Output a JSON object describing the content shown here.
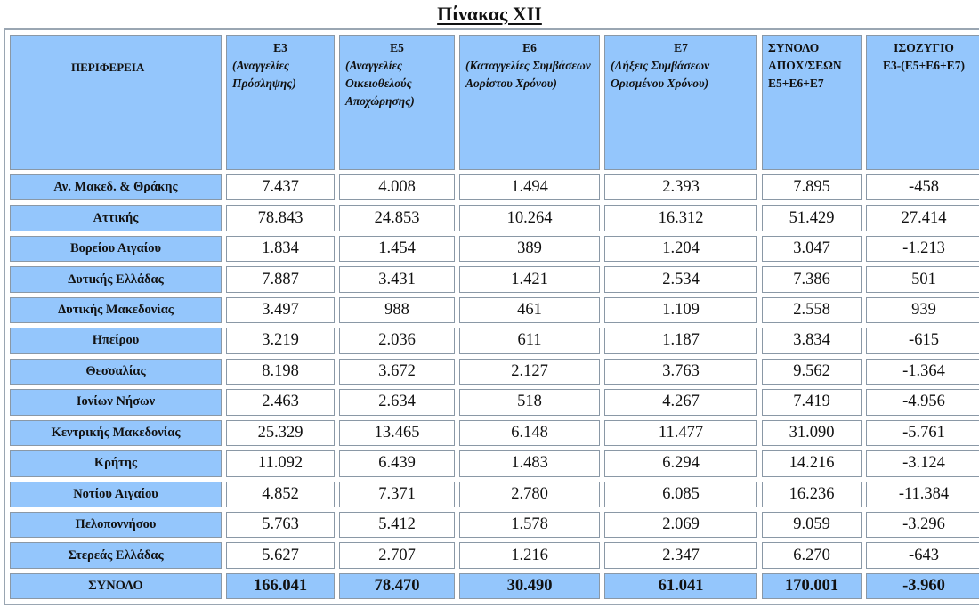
{
  "title": "Πίνακας XII",
  "headers": [
    {
      "code": "ΠΕΡΙΦΕΡΕΙΑ",
      "desc": ""
    },
    {
      "code": "Ε3",
      "desc": "(Αναγγελίες Πρόσληψης)"
    },
    {
      "code": "Ε5",
      "desc": "(Αναγγελίες Οικειοθελούς Αποχώρησης)"
    },
    {
      "code": "Ε6",
      "desc": "(Καταγγελίες Συμβάσεων Αορίστου Χρόνου)"
    },
    {
      "code": "Ε7",
      "desc": "(Λήξεις Συμβάσεων Ορισμένου Χρόνου)"
    },
    {
      "code": "ΣΥΝΟΛΟ ΑΠΟΧ/ΣΕΩΝ",
      "desc": "Ε5+Ε6+Ε7"
    },
    {
      "code": "ΙΣΟΖΥΓΙΟ",
      "desc": "Ε3-(Ε5+Ε6+Ε7)"
    }
  ],
  "rows": [
    {
      "region": "Αν. Μακεδ. & Θράκης",
      "values": [
        "7.437",
        "4.008",
        "1.494",
        "2.393",
        "7.895",
        "-458"
      ]
    },
    {
      "region": "Αττικής",
      "values": [
        "78.843",
        "24.853",
        "10.264",
        "16.312",
        "51.429",
        "27.414"
      ]
    },
    {
      "region": "Βορείου Αιγαίου",
      "values": [
        "1.834",
        "1.454",
        "389",
        "1.204",
        "3.047",
        "-1.213"
      ]
    },
    {
      "region": "Δυτικής Ελλάδας",
      "values": [
        "7.887",
        "3.431",
        "1.421",
        "2.534",
        "7.386",
        "501"
      ]
    },
    {
      "region": "Δυτικής Μακεδονίας",
      "values": [
        "3.497",
        "988",
        "461",
        "1.109",
        "2.558",
        "939"
      ]
    },
    {
      "region": "Ηπείρου",
      "values": [
        "3.219",
        "2.036",
        "611",
        "1.187",
        "3.834",
        "-615"
      ]
    },
    {
      "region": "Θεσσαλίας",
      "values": [
        "8.198",
        "3.672",
        "2.127",
        "3.763",
        "9.562",
        "-1.364"
      ]
    },
    {
      "region": "Ιονίων Νήσων",
      "values": [
        "2.463",
        "2.634",
        "518",
        "4.267",
        "7.419",
        "-4.956"
      ]
    },
    {
      "region": "Κεντρικής Μακεδονίας",
      "values": [
        "25.329",
        "13.465",
        "6.148",
        "11.477",
        "31.090",
        "-5.761"
      ]
    },
    {
      "region": "Κρήτης",
      "values": [
        "11.092",
        "6.439",
        "1.483",
        "6.294",
        "14.216",
        "-3.124"
      ]
    },
    {
      "region": "Νοτίου Αιγαίου",
      "values": [
        "4.852",
        "7.371",
        "2.780",
        "6.085",
        "16.236",
        "-11.384"
      ]
    },
    {
      "region": "Πελοποννήσου",
      "values": [
        "5.763",
        "5.412",
        "1.578",
        "2.069",
        "9.059",
        "-3.296"
      ]
    },
    {
      "region": "Στερεάς Ελλάδας",
      "values": [
        "5.627",
        "2.707",
        "1.216",
        "2.347",
        "6.270",
        "-643"
      ]
    }
  ],
  "total": {
    "region": "ΣΥΝΟΛΟ",
    "values": [
      "166.041",
      "78.470",
      "30.490",
      "61.041",
      "170.001",
      "-3.960"
    ]
  }
}
